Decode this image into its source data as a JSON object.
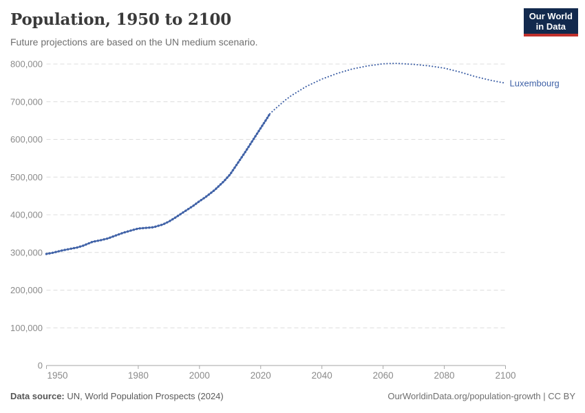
{
  "header": {
    "title": "Population, 1950 to 2100",
    "subtitle": "Future projections are based on the UN medium scenario.",
    "logo": {
      "line1": "Our World",
      "line2": "in Data",
      "bg_color": "#12294D",
      "accent_color": "#C0302C"
    }
  },
  "chart_data": {
    "type": "line",
    "title": "Population, 1950 to 2100",
    "xlabel": "",
    "ylabel": "",
    "xlim": [
      1950,
      2100
    ],
    "ylim": [
      0,
      800000
    ],
    "grid": true,
    "legend_position": "right-of-line-end",
    "legend_label": "Luxembourg",
    "colors": {
      "line": "#4062A7",
      "grid": "#DCDCDC",
      "axis": "#A6A6A6",
      "tick_text": "#8A8A8A"
    },
    "xticks": [
      {
        "v": 1950,
        "label": "1950"
      },
      {
        "v": 1980,
        "label": "1980"
      },
      {
        "v": 2000,
        "label": "2000"
      },
      {
        "v": 2020,
        "label": "2020"
      },
      {
        "v": 2040,
        "label": "2040"
      },
      {
        "v": 2060,
        "label": "2060"
      },
      {
        "v": 2080,
        "label": "2080"
      },
      {
        "v": 2100,
        "label": "2100"
      }
    ],
    "yticks": [
      {
        "v": 0,
        "label": "0"
      },
      {
        "v": 100000,
        "label": "100,000"
      },
      {
        "v": 200000,
        "label": "200,000"
      },
      {
        "v": 300000,
        "label": "300,000"
      },
      {
        "v": 400000,
        "label": "400,000"
      },
      {
        "v": 500000,
        "label": "500,000"
      },
      {
        "v": 600000,
        "label": "600,000"
      },
      {
        "v": 700000,
        "label": "700,000"
      },
      {
        "v": 800000,
        "label": "800,000"
      }
    ],
    "series": [
      {
        "name": "Luxembourg — estimates",
        "style": "solid-with-yearly-dots",
        "points": [
          [
            1950,
            296000
          ],
          [
            1952,
            299000
          ],
          [
            1955,
            305000
          ],
          [
            1958,
            310000
          ],
          [
            1960,
            313000
          ],
          [
            1962,
            318000
          ],
          [
            1965,
            328000
          ],
          [
            1968,
            333000
          ],
          [
            1970,
            337000
          ],
          [
            1972,
            343000
          ],
          [
            1975,
            352000
          ],
          [
            1978,
            359000
          ],
          [
            1980,
            363500
          ],
          [
            1983,
            365500
          ],
          [
            1985,
            367000
          ],
          [
            1988,
            374000
          ],
          [
            1990,
            382000
          ],
          [
            1992,
            392000
          ],
          [
            1995,
            408000
          ],
          [
            1998,
            424000
          ],
          [
            2000,
            436000
          ],
          [
            2002,
            447000
          ],
          [
            2005,
            466000
          ],
          [
            2008,
            489000
          ],
          [
            2010,
            507000
          ],
          [
            2012,
            531000
          ],
          [
            2015,
            567000
          ],
          [
            2018,
            605000
          ],
          [
            2020,
            630000
          ],
          [
            2022,
            655000
          ],
          [
            2023,
            668000
          ]
        ]
      },
      {
        "name": "Luxembourg — UN medium projection",
        "style": "dotted",
        "points": [
          [
            2023,
            668000
          ],
          [
            2025,
            683000
          ],
          [
            2028,
            704000
          ],
          [
            2030,
            716000
          ],
          [
            2035,
            741000
          ],
          [
            2040,
            760000
          ],
          [
            2045,
            775000
          ],
          [
            2050,
            787000
          ],
          [
            2055,
            795000
          ],
          [
            2060,
            800500
          ],
          [
            2063,
            801500
          ],
          [
            2065,
            801500
          ],
          [
            2070,
            799000
          ],
          [
            2075,
            795000
          ],
          [
            2080,
            789000
          ],
          [
            2085,
            779000
          ],
          [
            2090,
            767000
          ],
          [
            2095,
            757000
          ],
          [
            2100,
            749000
          ]
        ]
      }
    ]
  },
  "footer": {
    "source_label": "Data source:",
    "source_text": "UN, World Population Prospects (2024)",
    "link_text": "OurWorldinData.org/population-growth | CC BY"
  }
}
